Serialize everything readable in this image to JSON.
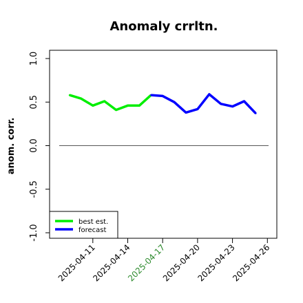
{
  "chart_data": {
    "type": "line",
    "title": "Anomaly crrltn.",
    "xlabel": "",
    "ylabel": "anom. corr.",
    "ylim": [
      -1.0,
      1.0
    ],
    "yticks": [
      "-1.0",
      "-0.5",
      "0.0",
      "0.5",
      "1.0"
    ],
    "x": [
      "2025-04-09",
      "2025-04-10",
      "2025-04-11",
      "2025-04-12",
      "2025-04-13",
      "2025-04-14",
      "2025-04-15",
      "2025-04-16",
      "2025-04-17",
      "2025-04-18",
      "2025-04-19",
      "2025-04-20",
      "2025-04-21",
      "2025-04-22",
      "2025-04-23",
      "2025-04-24",
      "2025-04-25",
      "2025-04-26"
    ],
    "xtick_labels": [
      {
        "label": "2025-04-11",
        "color": "#000000"
      },
      {
        "label": "2025-04-14",
        "color": "#000000"
      },
      {
        "label": "2025-04-17",
        "color": "#2e8b2e"
      },
      {
        "label": "2025-04-20",
        "color": "#000000"
      },
      {
        "label": "2025-04-23",
        "color": "#000000"
      },
      {
        "label": "2025-04-26",
        "color": "#000000"
      }
    ],
    "series": [
      {
        "name": "best est.",
        "color": "#00ee00",
        "x": [
          "2025-04-09",
          "2025-04-10",
          "2025-04-11",
          "2025-04-12",
          "2025-04-13",
          "2025-04-14",
          "2025-04-15",
          "2025-04-16",
          "2025-04-17"
        ],
        "values": [
          0.58,
          0.54,
          0.46,
          0.51,
          0.41,
          0.46,
          0.46,
          0.58,
          null
        ]
      },
      {
        "name": "forecast",
        "color": "#0000ff",
        "x": [
          "2025-04-16",
          "2025-04-17",
          "2025-04-18",
          "2025-04-19",
          "2025-04-20",
          "2025-04-21",
          "2025-04-22",
          "2025-04-23",
          "2025-04-24",
          "2025-04-25",
          "2025-04-26"
        ],
        "values": [
          0.58,
          0.57,
          0.5,
          0.38,
          0.42,
          0.59,
          0.48,
          0.45,
          0.51,
          0.37,
          null
        ]
      }
    ],
    "reference_line": 0.0,
    "legend_position": "bottom-left",
    "grid": false
  }
}
